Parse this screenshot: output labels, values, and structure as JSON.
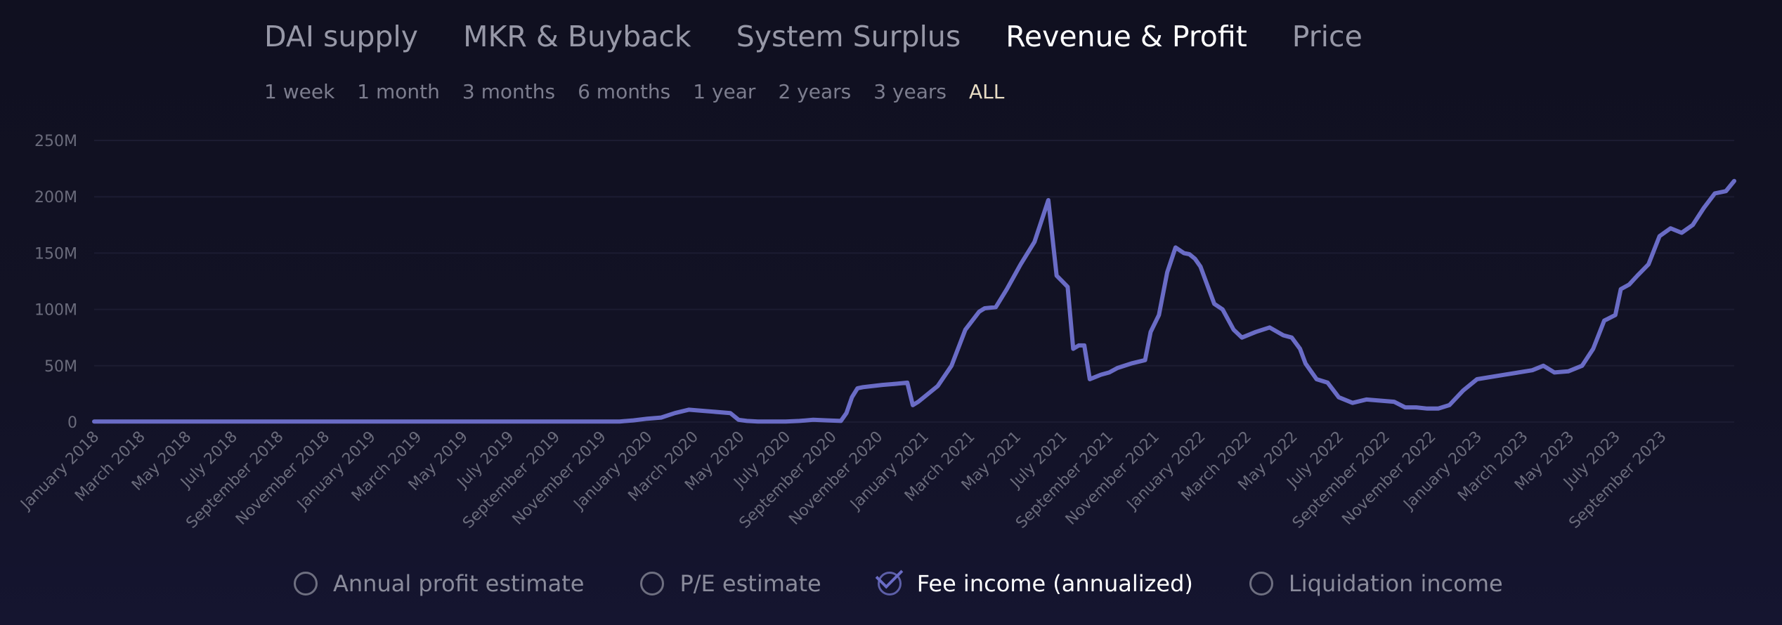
{
  "tabs": [
    "DAI supply",
    "MKR & Buyback",
    "System Surplus",
    "Revenue & Profit",
    "Price"
  ],
  "active_tab": "Revenue & Profit",
  "ranges": [
    "1 week",
    "1 month",
    "3 months",
    "6 months",
    "1 year",
    "2 years",
    "3 years",
    "ALL"
  ],
  "active_range": "ALL",
  "legend": [
    {
      "label": "Annual profit estimate",
      "checked": false
    },
    {
      "label": "P/E estimate",
      "checked": false
    },
    {
      "label": "Fee income (annualized)",
      "checked": true
    },
    {
      "label": "Liquidation income",
      "checked": false
    }
  ],
  "colors": {
    "series": "#6a6cc6",
    "grid": "#1c1c32",
    "tick": "#6b6c7c"
  },
  "chart_data": {
    "type": "line",
    "title": "",
    "xlabel": "",
    "ylabel": "",
    "ylim": [
      0,
      250000000
    ],
    "ytick_labels": [
      "0",
      "50M",
      "100M",
      "150M",
      "200M",
      "250M"
    ],
    "ytick_values": [
      0,
      50000000,
      100000000,
      150000000,
      200000000,
      250000000
    ],
    "xlim": [
      2018.0,
      2023.93
    ],
    "xtick_labels": [
      "January 2018",
      "March 2018",
      "May 2018",
      "July 2018",
      "September 2018",
      "November 2018",
      "January 2019",
      "March 2019",
      "May 2019",
      "July 2019",
      "September 2019",
      "November 2019",
      "January 2020",
      "March 2020",
      "May 2020",
      "July 2020",
      "September 2020",
      "November 2020",
      "January 2021",
      "March 2021",
      "May 2021",
      "July 2021",
      "September 2021",
      "November 2021",
      "January 2022",
      "March 2022",
      "May 2022",
      "July 2022",
      "September 2022",
      "November 2022",
      "January 2023",
      "March 2023",
      "May 2023",
      "July 2023",
      "September 2023"
    ],
    "series": [
      {
        "name": "Fee income (annualized)",
        "x": [
          2018.0,
          2019.0,
          2019.9,
          2019.95,
          2020.0,
          2020.05,
          2020.1,
          2020.15,
          2020.2,
          2020.3,
          2020.33,
          2020.36,
          2020.4,
          2020.5,
          2020.55,
          2020.6,
          2020.65,
          2020.7,
          2020.72,
          2020.74,
          2020.76,
          2020.78,
          2020.85,
          2020.9,
          2020.94,
          2020.96,
          2020.98,
          2021.0,
          2021.05,
          2021.1,
          2021.15,
          2021.2,
          2021.22,
          2021.26,
          2021.3,
          2021.35,
          2021.4,
          2021.45,
          2021.48,
          2021.5,
          2021.52,
          2021.54,
          2021.56,
          2021.58,
          2021.6,
          2021.62,
          2021.64,
          2021.67,
          2021.7,
          2021.75,
          2021.8,
          2021.82,
          2021.85,
          2021.88,
          2021.91,
          2021.94,
          2021.96,
          2021.98,
          2022.0,
          2022.05,
          2022.08,
          2022.12,
          2022.15,
          2022.2,
          2022.25,
          2022.3,
          2022.33,
          2022.36,
          2022.38,
          2022.42,
          2022.46,
          2022.5,
          2022.55,
          2022.6,
          2022.65,
          2022.7,
          2022.74,
          2022.78,
          2022.82,
          2022.86,
          2022.9,
          2022.95,
          2023.0,
          2023.1,
          2023.2,
          2023.24,
          2023.28,
          2023.33,
          2023.38,
          2023.42,
          2023.46,
          2023.5,
          2023.52,
          2023.55,
          2023.58,
          2023.62,
          2023.66,
          2023.7,
          2023.74,
          2023.78,
          2023.82,
          2023.86,
          2023.9,
          2023.93
        ],
        "values": [
          500000,
          500000,
          500000,
          1500000,
          3000000,
          4000000,
          8000000,
          11000000,
          10000000,
          8000000,
          2000000,
          1000000,
          500000,
          500000,
          1000000,
          2000000,
          1500000,
          1000000,
          8000000,
          22000000,
          30000000,
          31000000,
          33000000,
          34000000,
          35000000,
          15000000,
          18000000,
          22000000,
          32000000,
          50000000,
          82000000,
          98000000,
          101000000,
          102000000,
          118000000,
          140000000,
          160000000,
          197000000,
          130000000,
          125000000,
          120000000,
          65000000,
          68000000,
          68000000,
          38000000,
          40000000,
          42000000,
          44000000,
          48000000,
          52000000,
          55000000,
          80000000,
          95000000,
          133000000,
          155000000,
          150000000,
          149000000,
          145000000,
          138000000,
          105000000,
          100000000,
          82000000,
          75000000,
          80000000,
          84000000,
          77000000,
          75000000,
          65000000,
          52000000,
          38000000,
          35000000,
          22000000,
          17000000,
          20000000,
          19000000,
          18000000,
          13000000,
          13000000,
          12000000,
          12000000,
          15000000,
          28000000,
          38000000,
          42000000,
          46000000,
          50000000,
          44000000,
          45000000,
          50000000,
          65000000,
          90000000,
          95000000,
          118000000,
          122000000,
          130000000,
          140000000,
          165000000,
          172000000,
          168000000,
          175000000,
          190000000,
          203000000,
          205000000,
          214000000
        ]
      }
    ]
  }
}
